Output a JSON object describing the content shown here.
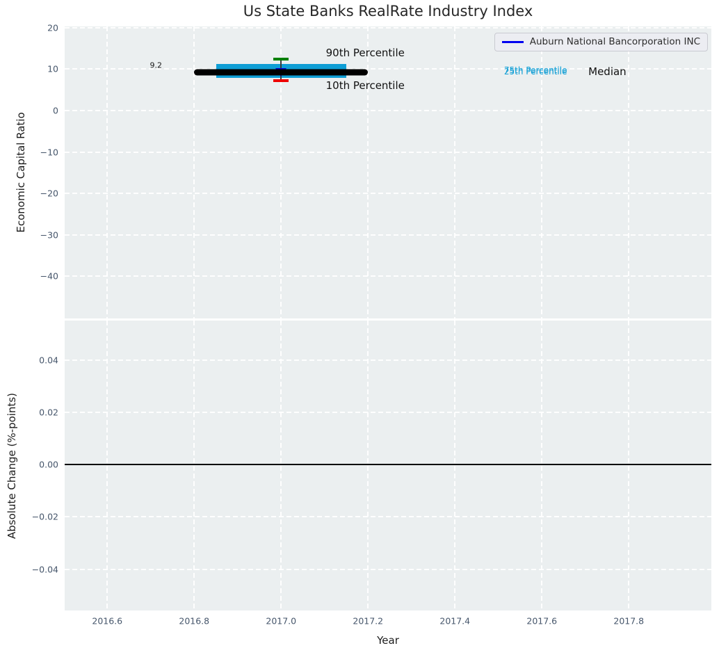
{
  "figure": {
    "title": "Us State Banks RealRate Industry Index",
    "colors": {
      "figure_bg": "#ffffff",
      "plot_bg": "#ebeff0",
      "grid": "#ffffff",
      "tick_label": "#46566b",
      "iqr_band": "#0f9ed5",
      "median": "#000000",
      "p90_cap": "#008000",
      "p10_cap": "#ee0000",
      "company_line": "#0000f0",
      "errorbar_stem": "#3b3b3b",
      "zero_line": "#000000"
    }
  },
  "legend": {
    "label": "Auburn National Bancorporation INC",
    "line_color": "#0000f0"
  },
  "axes_top": {
    "ylabel": "Economic Capital Ratio",
    "xlim": [
      2016.502,
      2017.99
    ],
    "ylim": [
      -50.2,
      20.3
    ],
    "yticks": [
      {
        "v": 20,
        "label": "20"
      },
      {
        "v": 10,
        "label": "10"
      },
      {
        "v": 0,
        "label": "0"
      },
      {
        "v": -10,
        "label": "−10"
      },
      {
        "v": -20,
        "label": "−20"
      },
      {
        "v": -30,
        "label": "−30"
      },
      {
        "v": -40,
        "label": "−40"
      }
    ],
    "xticks": [
      {
        "v": 2016.6,
        "label": "2016.6"
      },
      {
        "v": 2016.8,
        "label": "2016.8"
      },
      {
        "v": 2017.0,
        "label": "2017.0"
      },
      {
        "v": 2017.2,
        "label": "2017.2"
      },
      {
        "v": 2017.4,
        "label": "2017.4"
      },
      {
        "v": 2017.6,
        "label": "2017.6"
      },
      {
        "v": 2017.8,
        "label": "2017.8"
      }
    ],
    "show_xtick_labels": false
  },
  "axes_bottom": {
    "ylabel": "Absolute Change (%-points)",
    "xlabel": "Year",
    "xlim": [
      2016.502,
      2017.99
    ],
    "ylim": [
      -0.0558,
      0.0551
    ],
    "yticks": [
      {
        "v": 0.04,
        "label": "0.04"
      },
      {
        "v": 0.02,
        "label": "0.02"
      },
      {
        "v": 0.0,
        "label": "0.00"
      },
      {
        "v": -0.02,
        "label": "−0.02"
      },
      {
        "v": -0.04,
        "label": "−0.04"
      }
    ],
    "xticks": [
      {
        "v": 2016.6,
        "label": "2016.6"
      },
      {
        "v": 2016.8,
        "label": "2016.8"
      },
      {
        "v": 2017.0,
        "label": "2017.0"
      },
      {
        "v": 2017.2,
        "label": "2017.2"
      },
      {
        "v": 2017.4,
        "label": "2017.4"
      },
      {
        "v": 2017.6,
        "label": "2017.6"
      },
      {
        "v": 2017.8,
        "label": "2017.8"
      }
    ],
    "show_xtick_labels": true
  },
  "chart_data": [
    {
      "type": "line",
      "subplot": "top",
      "title": "Us State Banks RealRate Industry Index",
      "xlabel": "Year",
      "ylabel": "Economic Capital Ratio",
      "xlim": [
        2016.502,
        2017.99
      ],
      "ylim": [
        -50.2,
        20.3
      ],
      "grid": true,
      "legend_position": "upper right",
      "series": [
        {
          "name": "25th-75th Percentile Band",
          "type": "band",
          "color": "#0f9ed5",
          "x_start": 2016.85,
          "x_end": 2017.15,
          "y_low": 7.9,
          "y_high": 11.2
        },
        {
          "name": "Auburn National Bancorporation INC",
          "type": "hseg",
          "color": "#0000f0",
          "x_start": 2016.85,
          "x_end": 2017.15,
          "y": 9.2
        },
        {
          "name": "Percentile Range Stem",
          "type": "stem",
          "color": "#3b3b3b",
          "x": 2017.0,
          "y_low": 7.2,
          "y_high": 12.4
        },
        {
          "name": "Company Marker",
          "type": "triangle-down",
          "color": "#0000cc",
          "x": 2017.0,
          "y": 9.2
        },
        {
          "name": "Industry Median",
          "type": "median",
          "color": "#000000",
          "x_start": 2016.8,
          "x_end": 2017.2,
          "y": 9.2
        },
        {
          "name": "90th Percentile",
          "type": "cap",
          "color": "#008000",
          "x": 2017.0,
          "y": 12.4
        },
        {
          "name": "10th Percentile",
          "type": "cap",
          "color": "#ee0000",
          "x": 2017.0,
          "y": 7.2
        }
      ],
      "annotations": [
        {
          "name": "median-value-label",
          "text": "9.2",
          "x": 2016.712,
          "y": 10.9,
          "size": 11,
          "color": "#1a1a1a",
          "anchor": "center"
        },
        {
          "name": "p90-label",
          "text": "90th Percentile",
          "x": 2017.103,
          "y": 13.9,
          "size": 15,
          "color": "#111111",
          "anchor": "left"
        },
        {
          "name": "p10-label",
          "text": "10th Percentile",
          "x": 2017.103,
          "y": 6.0,
          "size": 15,
          "color": "#111111",
          "anchor": "left"
        },
        {
          "name": "p75-label",
          "text": "75th Percentile",
          "x": 2017.513,
          "y": 9.8,
          "size": 12,
          "color": "#0f9ed5",
          "anchor": "left"
        },
        {
          "name": "p25-label",
          "text": "25th Percentile",
          "x": 2017.513,
          "y": 9.4,
          "size": 12,
          "color": "#0f9ed5",
          "anchor": "left"
        },
        {
          "name": "median-label",
          "text": "Median",
          "x": 2017.707,
          "y": 9.4,
          "size": 15,
          "color": "#111111",
          "anchor": "left"
        }
      ]
    },
    {
      "type": "line",
      "subplot": "bottom",
      "xlabel": "Year",
      "ylabel": "Absolute Change (%-points)",
      "xlim": [
        2016.502,
        2017.99
      ],
      "ylim": [
        -0.0558,
        0.0551
      ],
      "grid": true,
      "series": [
        {
          "name": "Zero Line",
          "type": "hline",
          "color": "#000000",
          "y": 0.0
        }
      ],
      "annotations": []
    }
  ]
}
